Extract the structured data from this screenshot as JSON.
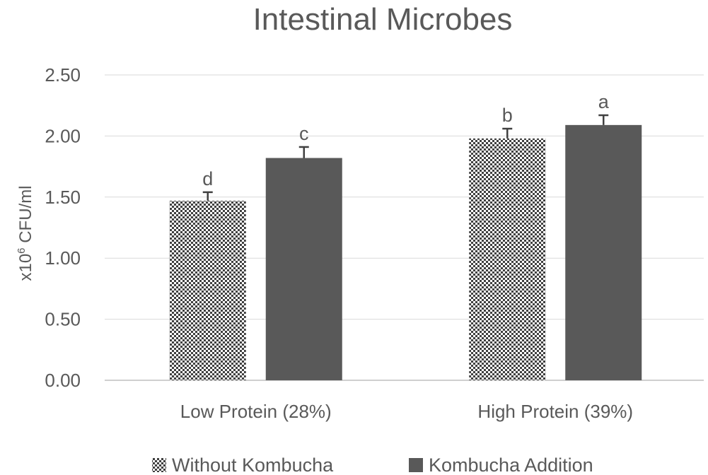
{
  "chart_data": {
    "type": "bar",
    "title": "Intestinal Microbes",
    "ylabel": {
      "prefix": "x10",
      "superscript": "6",
      "suffix": " CFU/ml"
    },
    "xlabel": "",
    "categories": [
      "Low Protein (28%)",
      "High Protein (39%)"
    ],
    "ylim": [
      0,
      2.5
    ],
    "yticks": [
      "0.00",
      "0.50",
      "1.00",
      "1.50",
      "2.00",
      "2.50"
    ],
    "grid": true,
    "legend_position": "bottom",
    "series": [
      {
        "name": "Without Kombucha",
        "values": [
          1.47,
          1.98
        ],
        "errors": [
          0.07,
          0.08
        ],
        "letters": [
          "d",
          "b"
        ],
        "fill": "pattern",
        "color": "#595959"
      },
      {
        "name": "Kombucha Addition",
        "values": [
          1.82,
          2.09
        ],
        "errors": [
          0.09,
          0.08
        ],
        "letters": [
          "c",
          "a"
        ],
        "fill": "solid",
        "color": "#595959"
      }
    ]
  }
}
